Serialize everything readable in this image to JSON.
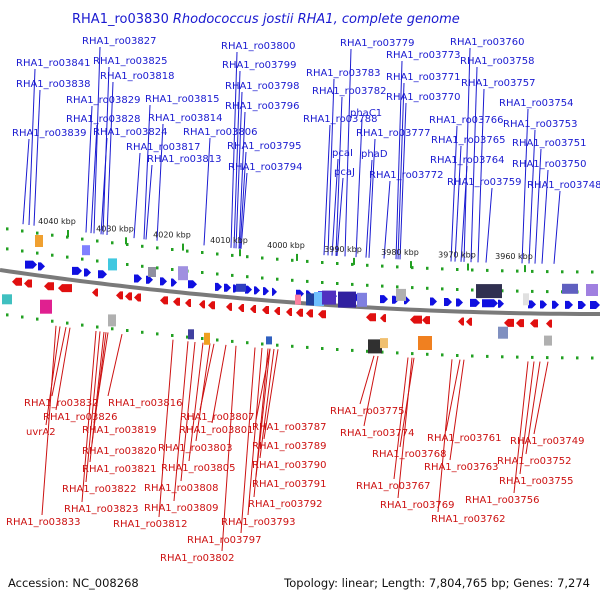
{
  "title": {
    "locus": "RHA1_ro03830",
    "organism": "Rhodococcus jostii RHA1, complete genome"
  },
  "footer": {
    "accession": "Accession: NC_008268",
    "stats": "Topology: linear; Length: 7,804,765 bp; Genes: 7,274"
  },
  "scale_labels": [
    "4040 kbp",
    "4030 kbp",
    "4020 kbp",
    "4010 kbp",
    "4000 kbp",
    "3990 kbp",
    "3980 kbp",
    "3970 kbp",
    "3960 kbp"
  ],
  "top_labels": [
    "RHA1_ro03827",
    "RHA1_ro03841",
    "RHA1_ro03825",
    "RHA1_ro03818",
    "RHA1_ro03838",
    "RHA1_ro03829",
    "RHA1_ro03815",
    "RHA1_ro03828",
    "RHA1_ro03814",
    "RHA1_ro03839",
    "RHA1_ro03824",
    "RHA1_ro03806",
    "RHA1_ro03817",
    "RHA1_ro03813",
    "RHA1_ro03800",
    "RHA1_ro03799",
    "RHA1_ro03798",
    "RHA1_ro03796",
    "RHA1_ro03795",
    "RHA1_ro03794",
    "RHA1_ro03779",
    "RHA1_ro03783",
    "RHA1_ro03782",
    "RHA1_ro03788",
    "phaC1",
    "pcaI",
    "pcaJ",
    "phaD",
    "RHA1_ro03777",
    "RHA1_ro03773",
    "RHA1_ro03771",
    "RHA1_ro03770",
    "RHA1_ro03772",
    "RHA1_ro03760",
    "RHA1_ro03758",
    "RHA1_ro03757",
    "RHA1_ro03766",
    "RHA1_ro03765",
    "RHA1_ro03764",
    "RHA1_ro03759",
    "RHA1_ro03754",
    "RHA1_ro03753",
    "RHA1_ro03751",
    "RHA1_ro03750",
    "RHA1_ro03748"
  ],
  "bottom_labels": [
    "RHA1_ro03832",
    "RHA1_ro03826",
    "uvrA2",
    "RHA1_ro03816",
    "RHA1_ro03819",
    "RHA1_ro03820",
    "RHA1_ro03821",
    "RHA1_ro03822",
    "RHA1_ro03823",
    "RHA1_ro03833",
    "RHA1_ro03807",
    "RHA1_ro03801",
    "RHA1_ro03803",
    "RHA1_ro03805",
    "RHA1_ro03808",
    "RHA1_ro03809",
    "RHA1_ro03812",
    "RHA1_ro03787",
    "RHA1_ro03789",
    "RHA1_ro03790",
    "RHA1_ro03791",
    "RHA1_ro03792",
    "RHA1_ro03793",
    "RHA1_ro03797",
    "RHA1_ro03802",
    "RHA1_ro03775",
    "RHA1_ro03774",
    "RHA1_ro03768",
    "RHA1_ro03767",
    "RHA1_ro03769",
    "RHA1_ro03761",
    "RHA1_ro03763",
    "RHA1_ro03762",
    "RHA1_ro03749",
    "RHA1_ro03752",
    "RHA1_ro03755",
    "RHA1_ro03756"
  ],
  "colors": {
    "forward_gene": "#1010e0",
    "reverse_gene": "#e01010",
    "top_label": "#1a1ad0",
    "bottom_label": "#cc1111",
    "backbone": "#7a7a7a",
    "scale_dots": "#22a022"
  }
}
